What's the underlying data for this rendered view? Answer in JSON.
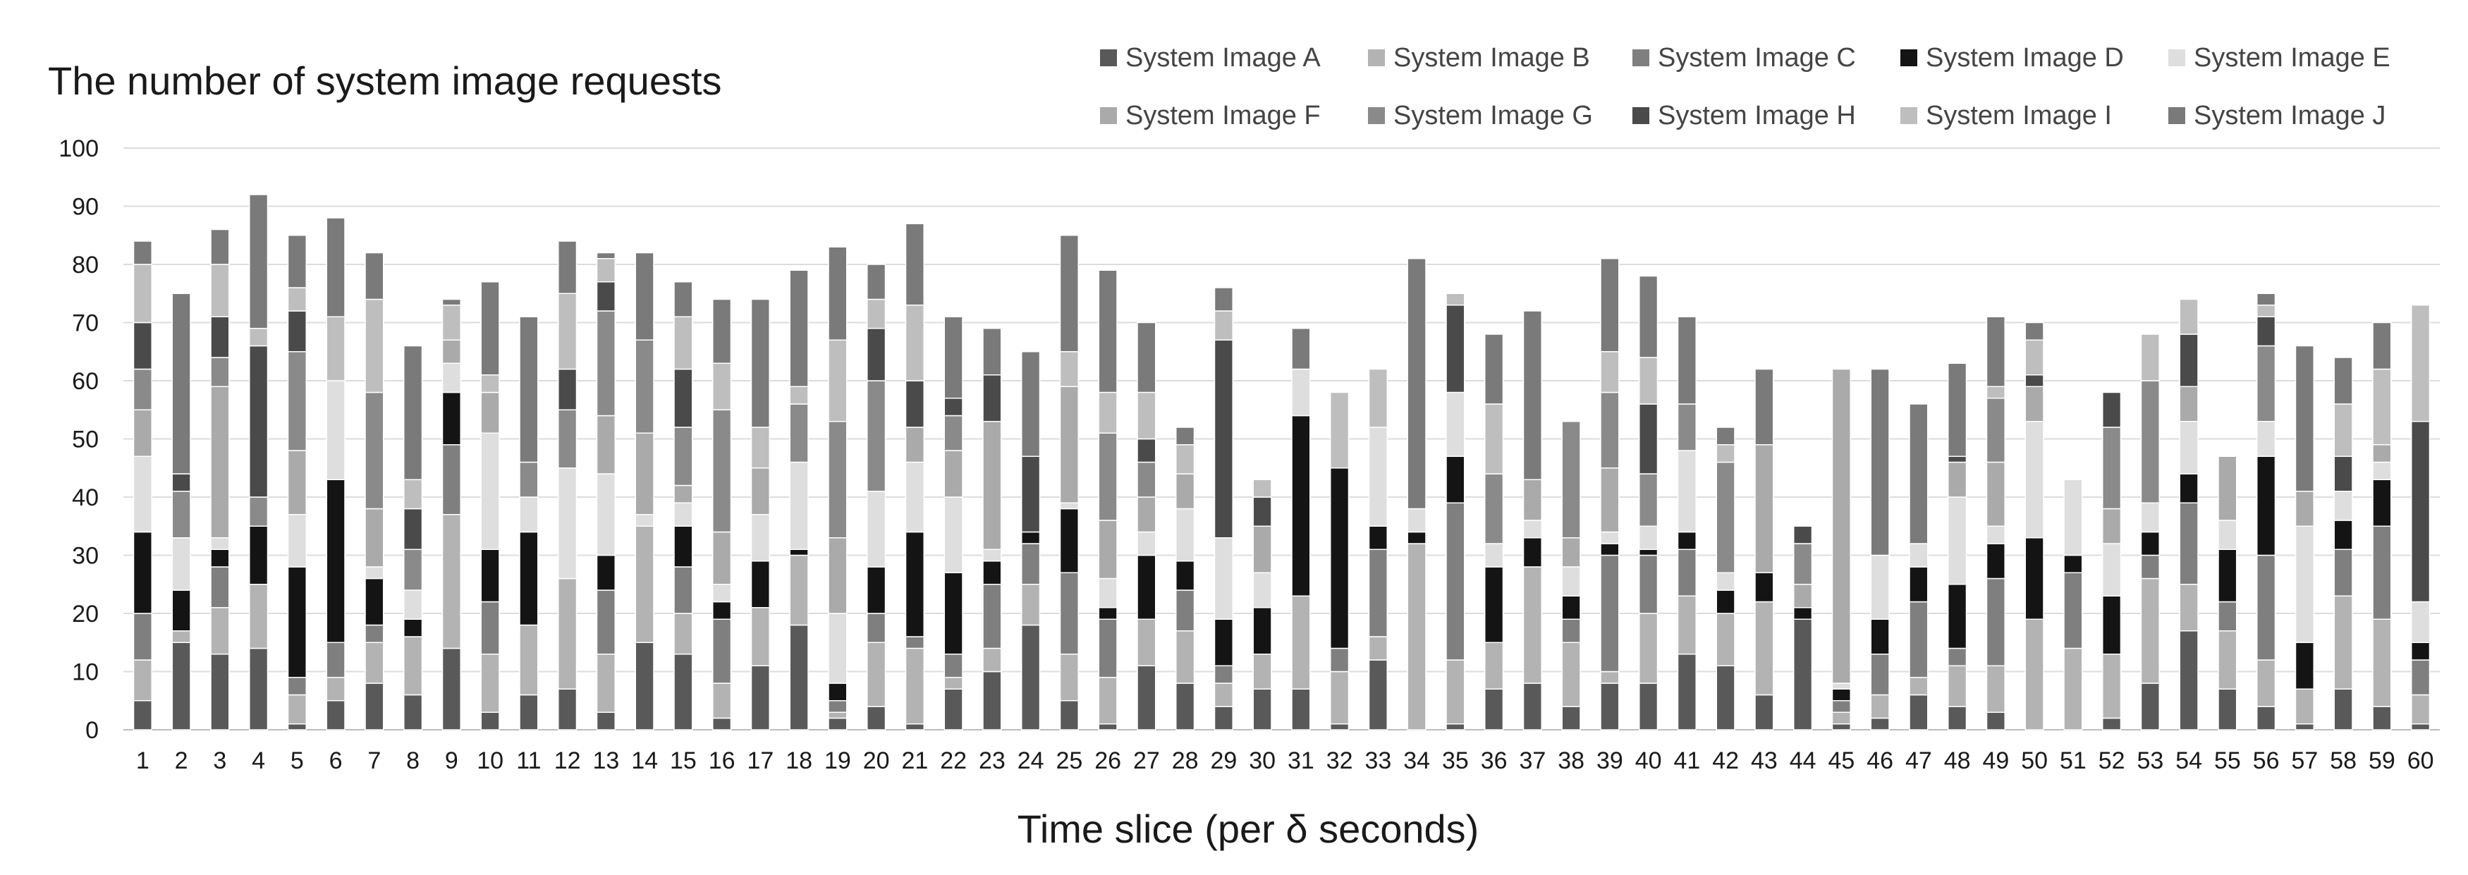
{
  "chart_data": {
    "type": "bar",
    "stacked": true,
    "title": "The number of system image requests",
    "xlabel": "Time slice (per δ seconds)",
    "ylabel": "",
    "ylim": [
      0,
      100
    ],
    "yticks": [
      0,
      10,
      20,
      30,
      40,
      50,
      60,
      70,
      80,
      90,
      100
    ],
    "grid": true,
    "legend_position": "top-right",
    "categories": [
      "1",
      "2",
      "3",
      "4",
      "5",
      "6",
      "7",
      "8",
      "9",
      "10",
      "11",
      "12",
      "13",
      "14",
      "15",
      "16",
      "17",
      "18",
      "19",
      "20",
      "21",
      "22",
      "23",
      "24",
      "25",
      "26",
      "27",
      "28",
      "29",
      "30",
      "31",
      "32",
      "33",
      "34",
      "35",
      "36",
      "37",
      "38",
      "39",
      "40",
      "41",
      "42",
      "43",
      "44",
      "45",
      "46",
      "47",
      "48",
      "49",
      "50",
      "51",
      "52",
      "53",
      "54",
      "55",
      "56",
      "57",
      "58",
      "59",
      "60"
    ],
    "series": [
      {
        "name": "System Image A",
        "color": "#595959",
        "values": [
          5,
          15,
          13,
          14,
          1,
          5,
          8,
          6,
          14,
          3,
          6,
          7,
          3,
          15,
          13,
          2,
          11,
          18,
          2,
          4,
          1,
          7,
          10,
          18,
          5,
          1,
          11,
          8,
          4,
          7,
          7,
          1,
          12,
          0,
          1,
          7,
          8,
          4,
          8,
          8,
          13,
          11,
          6,
          19,
          1,
          2,
          6,
          4,
          3,
          0,
          0,
          2,
          8,
          17,
          7,
          4,
          1,
          7,
          4,
          1
        ]
      },
      {
        "name": "System Image B",
        "color": "#b3b3b3",
        "values": [
          7,
          2,
          8,
          11,
          5,
          4,
          7,
          10,
          23,
          10,
          12,
          19,
          10,
          20,
          7,
          6,
          10,
          12,
          1,
          11,
          13,
          2,
          4,
          7,
          8,
          8,
          8,
          9,
          4,
          6,
          16,
          9,
          4,
          32,
          11,
          8,
          20,
          11,
          2,
          12,
          10,
          9,
          16,
          0,
          2,
          4,
          3,
          7,
          8,
          19,
          14,
          11,
          18,
          8,
          10,
          8,
          6,
          16,
          15,
          5
        ]
      },
      {
        "name": "System Image C",
        "color": "#7f7f7f",
        "values": [
          8,
          0,
          7,
          0,
          3,
          6,
          3,
          0,
          12,
          9,
          0,
          0,
          11,
          0,
          8,
          11,
          0,
          0,
          2,
          5,
          2,
          4,
          11,
          7,
          14,
          10,
          0,
          7,
          3,
          0,
          0,
          4,
          15,
          0,
          27,
          0,
          0,
          4,
          20,
          10,
          8,
          0,
          0,
          0,
          2,
          7,
          13,
          3,
          15,
          0,
          13,
          0,
          4,
          14,
          5,
          18,
          0,
          8,
          16,
          6
        ]
      },
      {
        "name": "System Image D",
        "color": "#141414",
        "values": [
          14,
          7,
          3,
          10,
          19,
          28,
          8,
          3,
          9,
          9,
          16,
          0,
          6,
          0,
          7,
          3,
          8,
          1,
          3,
          8,
          18,
          14,
          4,
          2,
          11,
          2,
          11,
          5,
          8,
          8,
          31,
          31,
          4,
          2,
          8,
          13,
          5,
          4,
          2,
          1,
          3,
          4,
          5,
          2,
          2,
          6,
          6,
          11,
          6,
          14,
          3,
          10,
          4,
          5,
          9,
          17,
          8,
          5,
          8,
          3
        ]
      },
      {
        "name": "System Image E",
        "color": "#dedede",
        "values": [
          13,
          9,
          2,
          0,
          9,
          17,
          2,
          5,
          5,
          20,
          6,
          19,
          14,
          2,
          4,
          3,
          8,
          15,
          12,
          13,
          12,
          13,
          2,
          0,
          1,
          5,
          4,
          9,
          14,
          6,
          8,
          0,
          17,
          4,
          11,
          4,
          3,
          5,
          2,
          4,
          14,
          3,
          0,
          0,
          1,
          11,
          4,
          15,
          3,
          20,
          13,
          9,
          5,
          9,
          5,
          6,
          20,
          5,
          3,
          7
        ]
      },
      {
        "name": "System Image F",
        "color": "#aaaaaa",
        "values": [
          8,
          0,
          26,
          0,
          11,
          0,
          10,
          0,
          4,
          7,
          0,
          0,
          10,
          14,
          3,
          9,
          8,
          0,
          13,
          0,
          6,
          8,
          22,
          0,
          20,
          10,
          6,
          6,
          0,
          8,
          0,
          0,
          0,
          0,
          0,
          0,
          7,
          5,
          11,
          0,
          0,
          0,
          22,
          4,
          54,
          0,
          0,
          6,
          11,
          6,
          0,
          6,
          0,
          6,
          11,
          0,
          6,
          0,
          3,
          0
        ]
      },
      {
        "name": "System Image G",
        "color": "#8a8a8a",
        "values": [
          7,
          8,
          5,
          5,
          17,
          0,
          20,
          7,
          0,
          0,
          6,
          10,
          18,
          16,
          10,
          21,
          0,
          10,
          20,
          19,
          0,
          6,
          0,
          0,
          0,
          15,
          6,
          0,
          0,
          0,
          0,
          0,
          0,
          0,
          0,
          12,
          0,
          20,
          13,
          9,
          8,
          19,
          0,
          7,
          0,
          0,
          0,
          0,
          11,
          0,
          0,
          14,
          21,
          0,
          0,
          13,
          0,
          0,
          0,
          0
        ]
      },
      {
        "name": "System Image H",
        "color": "#4a4a4a",
        "values": [
          8,
          3,
          7,
          26,
          7,
          0,
          0,
          7,
          0,
          0,
          0,
          7,
          5,
          0,
          10,
          0,
          0,
          0,
          0,
          9,
          8,
          3,
          8,
          13,
          0,
          0,
          4,
          0,
          34,
          5,
          0,
          0,
          0,
          0,
          15,
          0,
          0,
          0,
          0,
          12,
          0,
          0,
          0,
          3,
          0,
          0,
          0,
          1,
          0,
          2,
          0,
          6,
          0,
          9,
          0,
          5,
          0,
          6,
          0,
          31
        ]
      },
      {
        "name": "System Image I",
        "color": "#bebebe",
        "values": [
          10,
          0,
          9,
          3,
          4,
          11,
          16,
          5,
          6,
          3,
          0,
          13,
          4,
          0,
          9,
          8,
          7,
          3,
          14,
          5,
          13,
          0,
          0,
          0,
          6,
          7,
          8,
          5,
          5,
          3,
          0,
          13,
          10,
          0,
          2,
          12,
          0,
          0,
          7,
          8,
          0,
          3,
          0,
          0,
          0,
          0,
          0,
          0,
          2,
          6,
          0,
          0,
          8,
          6,
          0,
          2,
          0,
          9,
          13,
          20
        ]
      },
      {
        "name": "System Image J",
        "color": "#7a7a7a",
        "values": [
          4,
          31,
          6,
          23,
          9,
          17,
          8,
          23,
          1,
          16,
          25,
          9,
          1,
          15,
          6,
          11,
          22,
          20,
          16,
          6,
          14,
          14,
          8,
          18,
          20,
          21,
          12,
          3,
          4,
          0,
          7,
          0,
          0,
          43,
          0,
          12,
          29,
          0,
          16,
          14,
          15,
          3,
          13,
          0,
          0,
          32,
          24,
          16,
          12,
          3,
          0,
          0,
          0,
          0,
          0,
          2,
          25,
          8,
          8,
          0
        ]
      }
    ]
  }
}
